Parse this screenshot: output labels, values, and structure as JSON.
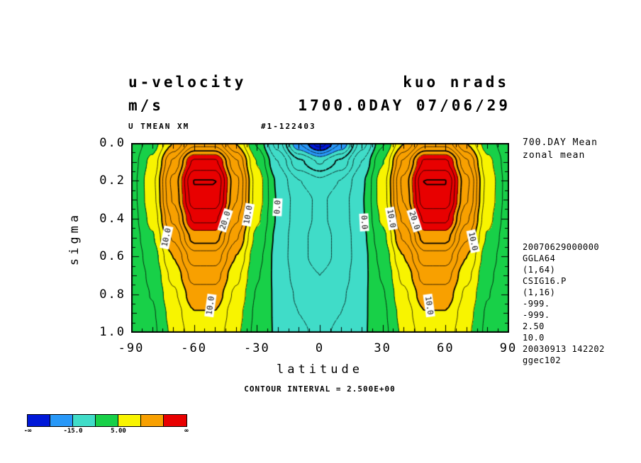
{
  "header": {
    "title_left": "u-velocity",
    "title_right": "kuo nrads",
    "units": "m/s",
    "title_center": "1700.0DAY 07/06/29",
    "sub_left": "U TMEAN XM",
    "sub_center": "#1-122403"
  },
  "side_notes": {
    "line1": "700.DAY Mean",
    "line2": "zonal mean",
    "meta": [
      "20070629000000",
      "GGLA64",
      "(1,64)",
      "CSIG16.P",
      "(1,16)",
      "-999.",
      "-999.",
      "2.50",
      "10.0",
      "20030913 142202",
      "ggec102"
    ]
  },
  "footer": {
    "contour_interval": "CONTOUR INTERVAL = 2.500E+00"
  },
  "chart_data": {
    "type": "heatmap",
    "title": "u-velocity (m/s) zonal mean, 1700.0DAY 07/06/29",
    "xlabel": "latitude",
    "ylabel": "sigma",
    "x_ticks": [
      -90,
      -60,
      -30,
      0,
      30,
      60,
      90
    ],
    "y_ticks": [
      0.0,
      0.2,
      0.4,
      0.6,
      0.8,
      1.0
    ],
    "xlim": [
      -90,
      90
    ],
    "ylim": [
      0.0,
      1.0
    ],
    "grid": "off",
    "contour_interval": 2.5,
    "line_min": -25,
    "line_max": 30,
    "bold_every": 10,
    "lats": [
      -90,
      -80,
      -70,
      -60,
      -50,
      -40,
      -30,
      -20,
      -10,
      0,
      10,
      20,
      30,
      40,
      50,
      60,
      70,
      80,
      90
    ],
    "sigmas": [
      0.0,
      0.1,
      0.2,
      0.3,
      0.4,
      0.5,
      0.6,
      0.7,
      0.8,
      0.9,
      1.0
    ],
    "u_grid": [
      [
        0.8,
        3.7,
        10.0,
        16.5,
        16.5,
        9.9,
        2.2,
        -6.2,
        -17.5,
        -24.0,
        -17.5,
        -6.2,
        2.2,
        9.9,
        16.5,
        16.5,
        10.0,
        3.7,
        0.8
      ],
      [
        1.3,
        5.7,
        15.4,
        25.6,
        25.6,
        15.4,
        4.9,
        -2.5,
        -9.4,
        -12.8,
        -9.4,
        -2.5,
        4.9,
        15.4,
        25.6,
        25.6,
        15.4,
        5.7,
        1.3
      ],
      [
        1.5,
        6.7,
        18.2,
        30.1,
        30.1,
        18.2,
        6.3,
        -0.5,
        -4.9,
        -7.0,
        -4.9,
        -0.5,
        6.3,
        18.2,
        30.1,
        30.1,
        18.2,
        6.7,
        1.5
      ],
      [
        1.5,
        6.5,
        17.7,
        29.1,
        29.1,
        17.7,
        6.2,
        -0.2,
        -3.8,
        -5.5,
        -3.8,
        -0.2,
        6.2,
        17.7,
        29.1,
        29.1,
        17.7,
        6.5,
        1.5
      ],
      [
        1.3,
        5.7,
        15.5,
        25.6,
        25.6,
        15.5,
        5.4,
        -0.3,
        -3.9,
        -5.5,
        -3.9,
        -0.3,
        5.4,
        15.5,
        25.6,
        25.6,
        15.5,
        5.7,
        1.3
      ],
      [
        1.0,
        4.7,
        12.8,
        21.0,
        21.0,
        12.8,
        4.3,
        -0.7,
        -4.3,
        -6.0,
        -4.3,
        -0.7,
        4.3,
        12.8,
        21.0,
        21.0,
        12.8,
        4.7,
        1.0
      ],
      [
        0.8,
        3.7,
        10.0,
        16.5,
        16.5,
        10.0,
        3.3,
        -0.9,
        -4.3,
        -6.0,
        -4.3,
        -0.9,
        3.3,
        10.0,
        16.5,
        16.5,
        10.0,
        3.7,
        0.8
      ],
      [
        0.7,
        3.0,
        8.2,
        13.5,
        13.5,
        8.2,
        2.7,
        -0.8,
        -3.6,
        -5.0,
        -3.6,
        -0.8,
        2.7,
        8.2,
        13.5,
        13.5,
        8.2,
        3.0,
        0.7
      ],
      [
        0.6,
        2.6,
        7.0,
        11.4,
        11.4,
        7.0,
        2.3,
        -0.6,
        -2.9,
        -4.0,
        -2.9,
        -0.6,
        2.3,
        7.0,
        11.4,
        11.4,
        7.0,
        2.6,
        0.6
      ],
      [
        0.5,
        2.2,
        6.0,
        9.9,
        9.9,
        6.0,
        2.0,
        -0.5,
        -2.5,
        -3.5,
        -2.5,
        -0.5,
        2.0,
        6.0,
        9.9,
        9.9,
        6.0,
        2.2,
        0.5
      ],
      [
        0.4,
        2.0,
        5.5,
        9.0,
        9.0,
        5.5,
        1.8,
        -0.4,
        -2.1,
        -3.0,
        -2.1,
        -0.4,
        1.8,
        5.5,
        9.0,
        9.0,
        5.5,
        2.0,
        0.4
      ]
    ],
    "fill_levels": [
      -20,
      -15,
      0,
      5,
      10,
      22.5
    ],
    "fill_colors": [
      "#0018d8",
      "#2898f8",
      "#40dcc8",
      "#18d048",
      "#f8f400",
      "#f8a000",
      "#e80000"
    ],
    "contour_labels": [
      {
        "text": "10.0",
        "lat": -73,
        "sig": 0.5,
        "rot": -78
      },
      {
        "text": "20.0",
        "lat": -45,
        "sig": 0.41,
        "rot": -72
      },
      {
        "text": "10.0",
        "lat": -34,
        "sig": 0.38,
        "rot": -80
      },
      {
        "text": "0.0",
        "lat": -20,
        "sig": 0.34,
        "rot": -87
      },
      {
        "text": "0.0",
        "lat": 21,
        "sig": 0.42,
        "rot": 87
      },
      {
        "text": "10.0",
        "lat": 34,
        "sig": 0.4,
        "rot": 80
      },
      {
        "text": "20.0",
        "lat": 45,
        "sig": 0.41,
        "rot": 72
      },
      {
        "text": "10.0",
        "lat": 73,
        "sig": 0.52,
        "rot": 78
      },
      {
        "text": "10.0",
        "lat": -52,
        "sig": 0.86,
        "rot": -82
      },
      {
        "text": "10.0",
        "lat": 52,
        "sig": 0.86,
        "rot": 82
      }
    ],
    "colorbar_labels": [
      {
        "text": "-∞",
        "edge": 0
      },
      {
        "text": "-15.0",
        "edge": 2
      },
      {
        "text": "5.00",
        "edge": 4
      },
      {
        "text": "∞",
        "edge": 7
      }
    ]
  }
}
